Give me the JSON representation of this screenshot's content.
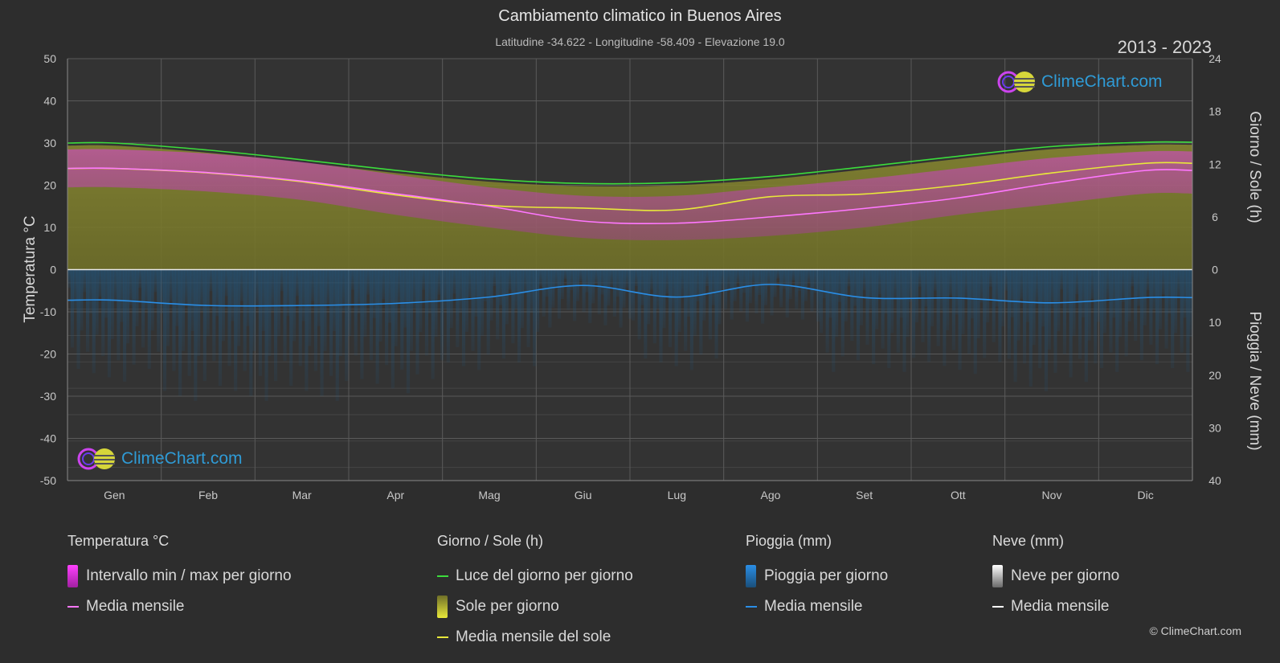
{
  "header": {
    "title": "Cambiamento climatico in Buenos Aires",
    "subtitle": "Latitudine -34.622 - Longitudine -58.409 - Elevazione 19.0",
    "years": "2013 - 2023"
  },
  "axes": {
    "left_title": "Temperatura °C",
    "right_top_title": "Giorno / Sole (h)",
    "right_bottom_title": "Pioggia / Neve (mm)"
  },
  "legend": {
    "temperature": {
      "title": "Temperatura °C",
      "range_label": "Intervallo min / max per giorno",
      "mean_label": "Media mensile"
    },
    "daysun": {
      "title": "Giorno / Sole (h)",
      "daylight_label": "Luce del giorno per giorno",
      "sun_label": "Sole per giorno",
      "sun_mean_label": "Media mensile del sole"
    },
    "rain": {
      "title": "Pioggia (mm)",
      "rain_label": "Pioggia per giorno",
      "mean_label": "Media mensile"
    },
    "snow": {
      "title": "Neve (mm)",
      "snow_label": "Neve per giorno",
      "mean_label": "Media mensile"
    }
  },
  "logo": {
    "text": "ClimeChart.com"
  },
  "copyright": "© ClimeChart.com",
  "colors": {
    "background": "#2d2d2d",
    "temp_range": "#d63ad6",
    "temp_mean": "#ff77ff",
    "daylight": "#3cdc3c",
    "sun": "#b8b83a",
    "sun_mean": "#e8e83a",
    "rain": "#1e6fae",
    "rain_mean": "#2a8ee6",
    "snow": "#ffffff"
  },
  "chart_data": {
    "type": "area",
    "categories": [
      "Gen",
      "Feb",
      "Mar",
      "Apr",
      "Mag",
      "Giu",
      "Lug",
      "Ago",
      "Set",
      "Ott",
      "Nov",
      "Dic"
    ],
    "y_left": {
      "label": "Temperatura °C",
      "range": [
        -50,
        50
      ],
      "ticks": [
        50,
        40,
        30,
        20,
        10,
        0,
        -10,
        -20,
        -30,
        -40,
        -50
      ]
    },
    "y_right_top": {
      "label": "Giorno / Sole (h)",
      "range": [
        0,
        24
      ],
      "ticks": [
        24,
        18,
        12,
        6,
        0
      ]
    },
    "y_right_bottom": {
      "label": "Pioggia / Neve (mm)",
      "range": [
        0,
        40
      ],
      "ticks": [
        0,
        10,
        20,
        30,
        40
      ]
    },
    "series": [
      {
        "name": "Intervallo min / max per giorno (max)",
        "values": [
          28.5,
          27.5,
          25.5,
          22.5,
          19.5,
          17.5,
          17.5,
          19.5,
          21.5,
          24,
          26.5,
          28
        ]
      },
      {
        "name": "Intervallo min / max per giorno (min)",
        "values": [
          19.5,
          18.5,
          16.5,
          13,
          10,
          7.5,
          7,
          8,
          10,
          13,
          15.5,
          18
        ]
      },
      {
        "name": "Media mensile",
        "values": [
          24,
          23,
          21,
          18,
          15,
          11.5,
          11,
          12.5,
          14.5,
          17,
          20.5,
          23.5
        ]
      },
      {
        "name": "Luce del giorno per giorno",
        "values": [
          14.4,
          13.6,
          12.5,
          11.3,
          10.3,
          9.8,
          9.9,
          10.6,
          11.7,
          12.9,
          14.0,
          14.5
        ]
      },
      {
        "name": "Media mensile del sole",
        "values": [
          11.5,
          11.0,
          10.0,
          8.5,
          7.3,
          7.0,
          6.8,
          8.3,
          8.6,
          9.6,
          11.0,
          12.1
        ]
      },
      {
        "name": "Pioggia media mensile",
        "values": [
          5.8,
          6.8,
          6.8,
          6.4,
          5.2,
          3.0,
          5.2,
          2.8,
          5.3,
          5.4,
          6.3,
          5.3
        ]
      }
    ]
  }
}
